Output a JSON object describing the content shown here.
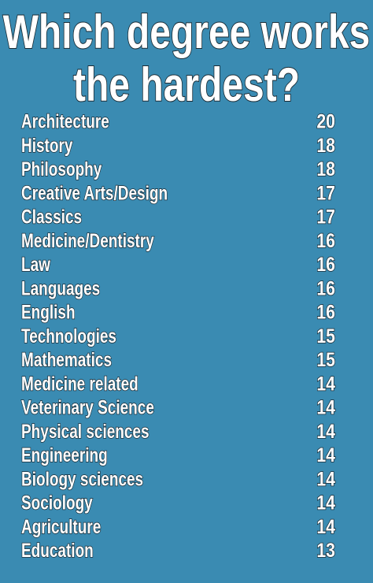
{
  "title_lines": [
    "Which degree works",
    "the hardest?"
  ],
  "rows": [
    [
      "Architecture",
      "20"
    ],
    [
      "History",
      "18"
    ],
    [
      "Philosophy",
      "18"
    ],
    [
      "Creative Arts/Design",
      "17"
    ],
    [
      "Classics",
      "17"
    ],
    [
      "Medicine/Dentistry",
      "16"
    ],
    [
      "Law",
      "16"
    ],
    [
      "Languages",
      "16"
    ],
    [
      "English",
      "16"
    ],
    [
      "Technologies",
      "15"
    ],
    [
      "Mathematics",
      "15"
    ],
    [
      "Medicine related",
      "14"
    ],
    [
      "Veterinary Science",
      "14"
    ],
    [
      "Physical sciences",
      "14"
    ],
    [
      "Engineering",
      "14"
    ],
    [
      "Biology sciences",
      "14"
    ],
    [
      "Sociology",
      "14"
    ],
    [
      "Agriculture",
      "14"
    ],
    [
      "Education",
      "13"
    ]
  ]
}
